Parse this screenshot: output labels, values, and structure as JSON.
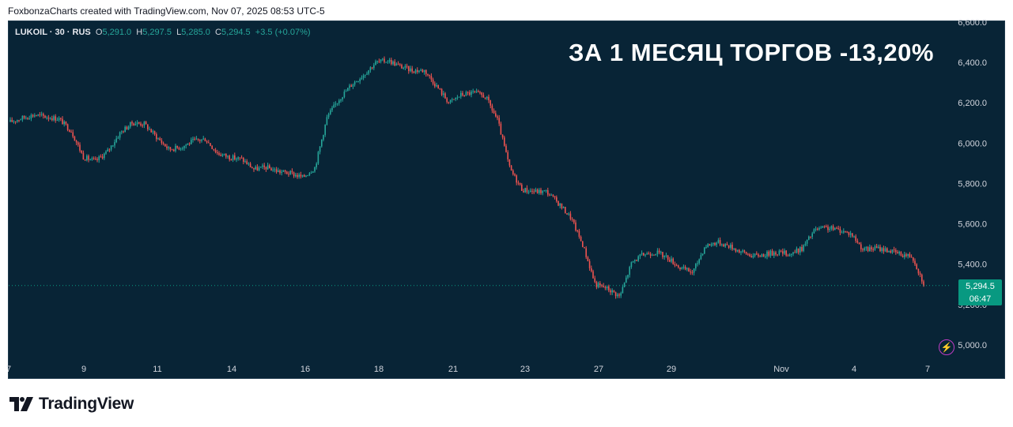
{
  "header": {
    "caption": "FoxbonzaCharts created with TradingView.com, Nov 07, 2025 08:53 UTC-5"
  },
  "legend": {
    "symbol": "LUKOIL · 30 · RUS",
    "open_label": "O",
    "open": "5,291.0",
    "high_label": "H",
    "high": "5,297.5",
    "low_label": "L",
    "low": "5,285.0",
    "close_label": "C",
    "close": "5,294.5",
    "change": "+3.5 (+0.07%)"
  },
  "headline": "ЗА 1 МЕСЯЦ ТОРГОВ -13,20%",
  "price_tag": {
    "price": "5,294.5",
    "countdown": "06:47"
  },
  "footer": {
    "brand": "TradingView"
  },
  "colors": {
    "background": "#082436",
    "up": "#26a69a",
    "down": "#ef5350",
    "grid_text": "#d1d4dc",
    "tag": "#089981"
  },
  "icons": {
    "alert": "lightning-icon",
    "brand": "tradingview-logo-icon"
  },
  "chart_data": {
    "type": "candlestick",
    "interval": "30",
    "y_ticks": [
      5000,
      5200,
      5400,
      5600,
      5800,
      6000,
      6200,
      6400,
      6600
    ],
    "y_tick_labels": [
      "5,000.0",
      "5,200.0",
      "5,400.0",
      "5,600.0",
      "5,800.0",
      "6,000.0",
      "6,200.0",
      "6,400.0",
      "6,600.0"
    ],
    "ylim": [
      4935,
      6635
    ],
    "x_ticks": [
      "7",
      "9",
      "11",
      "14",
      "16",
      "18",
      "21",
      "23",
      "27",
      "29",
      "Nov",
      "4",
      "7"
    ],
    "last_price": 5294.5,
    "close_path": [
      {
        "s": 0,
        "y": 6105
      },
      {
        "s": 1,
        "y": 6125
      },
      {
        "s": 2,
        "y": 6140
      },
      {
        "s": 3,
        "y": 6130
      },
      {
        "s": 4,
        "y": 6120
      },
      {
        "s": 5,
        "y": 6060
      },
      {
        "s": 6,
        "y": 5930
      },
      {
        "s": 7,
        "y": 5910
      },
      {
        "s": 8,
        "y": 5960
      },
      {
        "s": 9,
        "y": 6050
      },
      {
        "s": 10,
        "y": 6100
      },
      {
        "s": 11,
        "y": 6095
      },
      {
        "s": 12,
        "y": 6030
      },
      {
        "s": 13,
        "y": 5970
      },
      {
        "s": 14,
        "y": 5980
      },
      {
        "s": 15,
        "y": 6010
      },
      {
        "s": 16,
        "y": 6020
      },
      {
        "s": 17,
        "y": 5950
      },
      {
        "s": 18,
        "y": 5930
      },
      {
        "s": 19,
        "y": 5920
      },
      {
        "s": 20,
        "y": 5870
      },
      {
        "s": 21,
        "y": 5880
      },
      {
        "s": 22,
        "y": 5860
      },
      {
        "s": 23,
        "y": 5850
      },
      {
        "s": 24,
        "y": 5830
      },
      {
        "s": 25,
        "y": 5880
      },
      {
        "s": 26,
        "y": 6130
      },
      {
        "s": 27,
        "y": 6220
      },
      {
        "s": 28,
        "y": 6290
      },
      {
        "s": 29,
        "y": 6340
      },
      {
        "s": 30,
        "y": 6400
      },
      {
        "s": 31,
        "y": 6410
      },
      {
        "s": 32,
        "y": 6380
      },
      {
        "s": 33,
        "y": 6360
      },
      {
        "s": 34,
        "y": 6360
      },
      {
        "s": 35,
        "y": 6280
      },
      {
        "s": 36,
        "y": 6200
      },
      {
        "s": 37,
        "y": 6240
      },
      {
        "s": 38,
        "y": 6250
      },
      {
        "s": 39,
        "y": 6230
      },
      {
        "s": 40,
        "y": 6110
      },
      {
        "s": 41,
        "y": 5870
      },
      {
        "s": 42,
        "y": 5770
      },
      {
        "s": 43,
        "y": 5760
      },
      {
        "s": 44,
        "y": 5760
      },
      {
        "s": 45,
        "y": 5700
      },
      {
        "s": 46,
        "y": 5630
      },
      {
        "s": 47,
        "y": 5490
      },
      {
        "s": 48,
        "y": 5300
      },
      {
        "s": 49,
        "y": 5280
      },
      {
        "s": 50,
        "y": 5240
      },
      {
        "s": 51,
        "y": 5410
      },
      {
        "s": 52,
        "y": 5450
      },
      {
        "s": 53,
        "y": 5460
      },
      {
        "s": 54,
        "y": 5430
      },
      {
        "s": 55,
        "y": 5380
      },
      {
        "s": 56,
        "y": 5360
      },
      {
        "s": 57,
        "y": 5490
      },
      {
        "s": 58,
        "y": 5510
      },
      {
        "s": 59,
        "y": 5490
      },
      {
        "s": 60,
        "y": 5460
      },
      {
        "s": 61,
        "y": 5440
      },
      {
        "s": 62,
        "y": 5450
      },
      {
        "s": 63,
        "y": 5460
      },
      {
        "s": 64,
        "y": 5450
      },
      {
        "s": 65,
        "y": 5480
      },
      {
        "s": 66,
        "y": 5570
      },
      {
        "s": 67,
        "y": 5580
      },
      {
        "s": 68,
        "y": 5570
      },
      {
        "s": 69,
        "y": 5550
      },
      {
        "s": 70,
        "y": 5470
      },
      {
        "s": 71,
        "y": 5480
      },
      {
        "s": 72,
        "y": 5470
      },
      {
        "s": 73,
        "y": 5450
      },
      {
        "s": 74,
        "y": 5440
      },
      {
        "s": 75,
        "y": 5295
      }
    ]
  }
}
